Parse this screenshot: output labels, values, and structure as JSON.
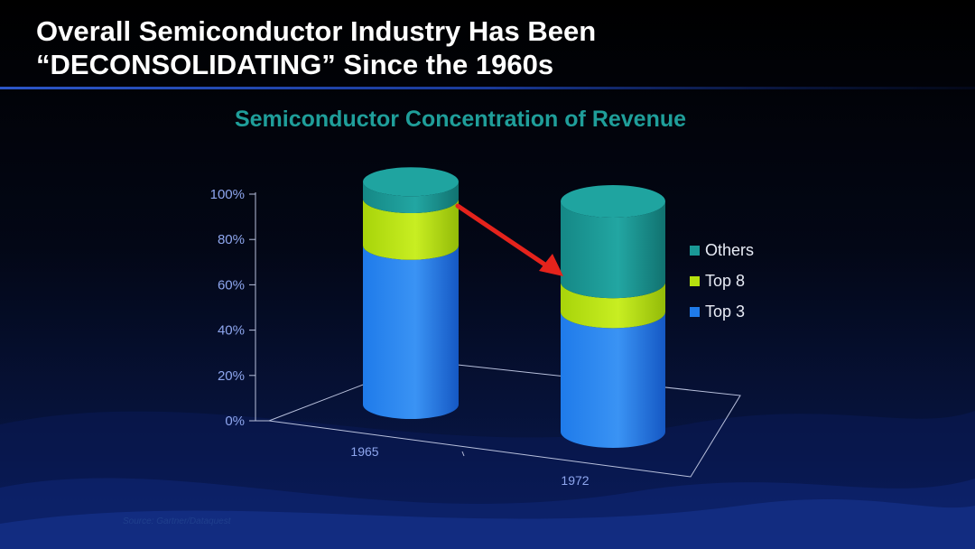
{
  "slide": {
    "title_line1": "Overall Semiconductor Industry Has Been",
    "title_line2": "“DECONSOLIDATING” Since the 1960s",
    "source": "Source: Gartner/Dataquest"
  },
  "chart_data": {
    "type": "bar",
    "stacked": true,
    "style": "3d-cylinder",
    "title": "Semiconductor Concentration of Revenue",
    "categories": [
      "1965",
      "1972"
    ],
    "series": [
      {
        "name": "Top 3",
        "values": [
          75,
          52
        ],
        "color": "#1f7bea"
      },
      {
        "name": "Top 8",
        "values": [
          22,
          13
        ],
        "color": "#b6e10e"
      },
      {
        "name": "Others",
        "values": [
          8,
          35
        ],
        "color": "#1a9896"
      }
    ],
    "y_ticks": [
      "0%",
      "20%",
      "40%",
      "60%",
      "80%",
      "100%"
    ],
    "ylim": [
      0,
      100
    ],
    "legend_position": "right",
    "legend_order": [
      "Others",
      "Top 8",
      "Top 3"
    ],
    "annotation": "red arrow from top of 1965 Top 8 segment to top of 1972 Top 8 segment"
  }
}
